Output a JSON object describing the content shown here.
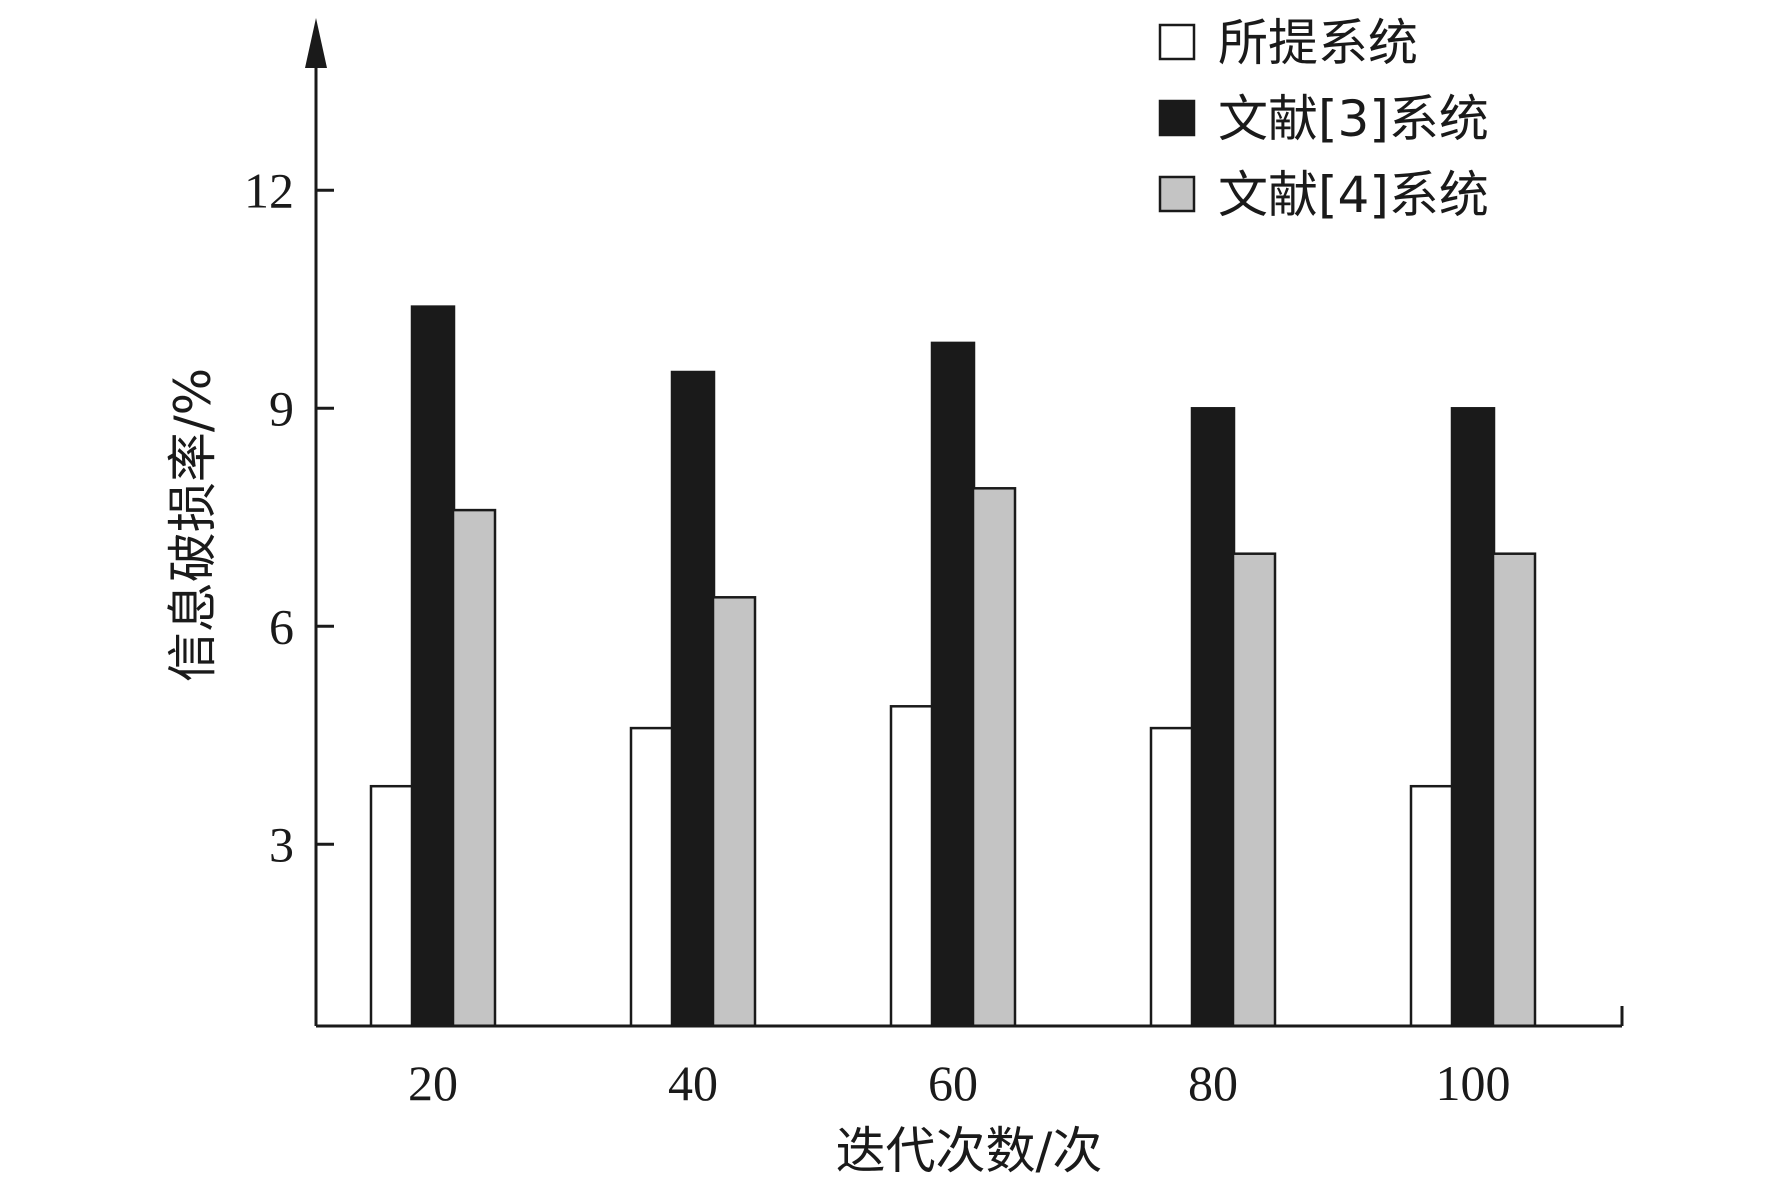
{
  "chart_data": {
    "type": "bar",
    "categories": [
      "20",
      "40",
      "60",
      "80",
      "100"
    ],
    "series": [
      {
        "name": "所提系统",
        "values": [
          3.8,
          4.6,
          4.9,
          4.6,
          3.8
        ],
        "color": "#ffffff"
      },
      {
        "name": "文献[3]系统",
        "values": [
          10.4,
          9.5,
          9.9,
          9.0,
          9.0
        ],
        "color": "#1a1a1a"
      },
      {
        "name": "文献[4]系统",
        "values": [
          7.6,
          6.4,
          7.9,
          7.0,
          7.0
        ],
        "color": "#c4c4c4"
      }
    ],
    "title": "",
    "xlabel": "迭代次数/次",
    "ylabel": "信息破损率/%",
    "ylim": [
      0.5,
      14
    ],
    "yticks": [
      3,
      6,
      9,
      12
    ],
    "grid": false,
    "legend_position": "top-right"
  }
}
